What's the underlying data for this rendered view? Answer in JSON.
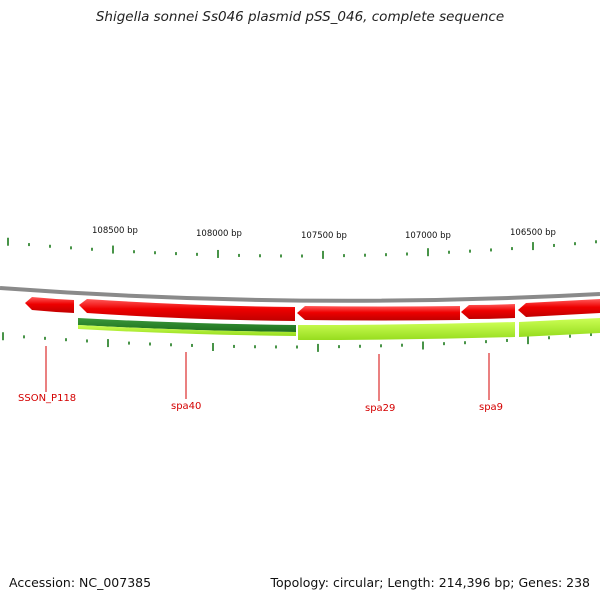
{
  "title": "Shigella sonnei Ss046 plasmid pSS_046, complete sequence",
  "accession_text": "Accession: NC_007385",
  "summary_text": "Topology: circular; Length: 214,396 bp; Genes: 238",
  "colors": {
    "background": "#ffffff",
    "backbone": "#8a8a8a",
    "forward_gene": "#ee0000",
    "reverse_gene": "#ff1f1f",
    "feature_dark": "#2e8b2e",
    "feature_light": "#aaee2a",
    "tick": "#1a7a1a",
    "label": "#d40000"
  },
  "ruler": {
    "labels": [
      "108500 bp",
      "108000 bp",
      "107500 bp",
      "107000 bp",
      "106500 bp"
    ]
  },
  "gene_labels": [
    "SSON_P118",
    "spa40",
    "spa29",
    "spa9"
  ]
}
